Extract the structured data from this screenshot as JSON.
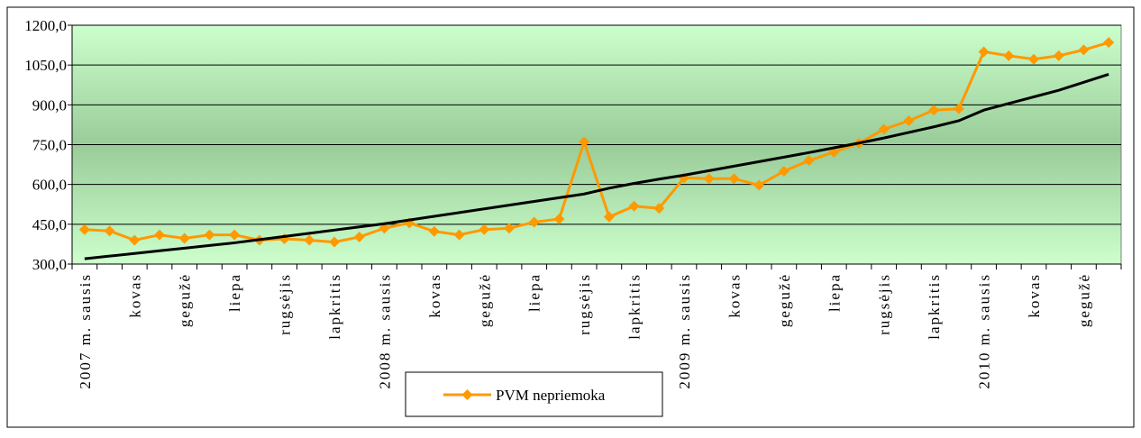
{
  "chart_data": {
    "type": "line",
    "categories": [
      "2007 m. sausis",
      null,
      "kovas",
      null,
      "gegužė",
      null,
      "liepa",
      null,
      "rugsėjis",
      null,
      "lapkritis",
      null,
      "2008 m. sausis",
      null,
      "kovas",
      null,
      "gegužė",
      null,
      "liepa",
      null,
      "rugsėjis",
      null,
      "lapkritis",
      null,
      "2009 m. sausis",
      null,
      "kovas",
      null,
      "gegužė",
      null,
      "liepa",
      null,
      "rugsėjis",
      null,
      "lapkritis",
      null,
      "2010 m. sausis",
      null,
      "kovas",
      null,
      "gegužė",
      null
    ],
    "series": [
      {
        "name": "PVM nepriemoka",
        "color": "#ff9900",
        "marker": "diamond",
        "values": [
          430,
          425,
          390,
          410,
          397,
          410,
          410,
          390,
          395,
          390,
          383,
          402,
          435,
          455,
          423,
          410,
          430,
          435,
          458,
          470,
          760,
          478,
          518,
          510,
          625,
          622,
          622,
          597,
          650,
          690,
          722,
          755,
          808,
          840,
          880,
          885,
          1100,
          1085,
          1072,
          1085,
          1107,
          1135
        ]
      },
      {
        "color": "#000000",
        "values": [
          320,
          330,
          340,
          350,
          360,
          370,
          380,
          392,
          404,
          416,
          428,
          440,
          452,
          466,
          480,
          494,
          508,
          522,
          536,
          550,
          564,
          586,
          604,
          620,
          635,
          652,
          669,
          686,
          703,
          720,
          738,
          756,
          775,
          796,
          817,
          840,
          880,
          905,
          930,
          955,
          985,
          1015
        ]
      }
    ],
    "ylim": [
      300,
      1200
    ],
    "yticks": [
      {
        "value": 300,
        "label": "300,0"
      },
      {
        "value": 450,
        "label": "450,0"
      },
      {
        "value": 600,
        "label": "600,0"
      },
      {
        "value": 750,
        "label": "750,0"
      },
      {
        "value": 900,
        "label": "900,0"
      },
      {
        "value": 1050,
        "label": "1050,0"
      },
      {
        "value": 1200,
        "label": "1200,0"
      }
    ],
    "grid": true,
    "legend": "bottom"
  }
}
